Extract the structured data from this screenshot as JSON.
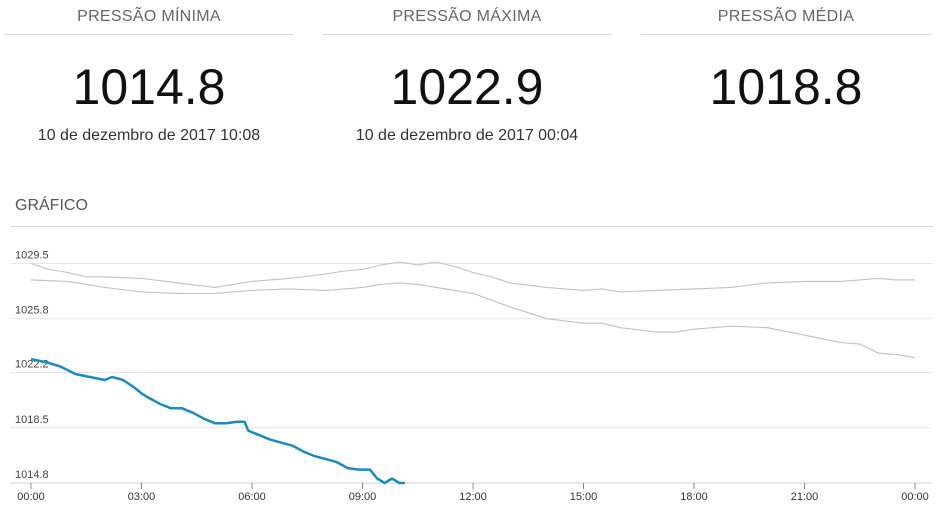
{
  "stats": [
    {
      "label": "PRESSÃO MÍNIMA",
      "value": "1014.8",
      "date": "10 de dezembro de 2017 10:08"
    },
    {
      "label": "PRESSÃO MÁXIMA",
      "value": "1022.9",
      "date": "10 de dezembro de 2017 00:04"
    },
    {
      "label": "PRESSÃO MÉDIA",
      "value": "1018.8",
      "date": ""
    }
  ],
  "section_title": "GRÁFICO",
  "colors": {
    "current": "#1a8ac4",
    "history": "#c9bfc1",
    "grid": "#e6e6e6"
  },
  "chart_data": {
    "type": "line",
    "x_unit": "hours",
    "xlim": [
      0,
      24
    ],
    "ylim": [
      1014.8,
      1032.7
    ],
    "x_ticks": [
      0,
      3,
      6,
      9,
      12,
      15,
      18,
      21,
      24
    ],
    "x_tick_labels": [
      "00:00",
      "03:00",
      "06:00",
      "09:00",
      "12:00",
      "15:00",
      "18:00",
      "21:00",
      "00:00"
    ],
    "y_ticks": [
      1014.8,
      1018.5,
      1022.2,
      1025.8,
      1029.5
    ],
    "y_tick_labels": [
      "1014.8",
      "1018.5",
      "1022.2",
      "1025.8",
      "1029.5"
    ],
    "grid": true,
    "series": [
      {
        "role": "history-upper",
        "x": [
          0,
          0.5,
          1,
          1.5,
          2,
          3,
          4,
          5,
          5.5,
          6,
          7,
          8,
          8.5,
          9,
          9.5,
          10,
          10.5,
          11,
          11.5,
          12,
          12.5,
          13,
          14,
          15,
          15.5,
          16,
          17,
          18,
          19,
          20,
          21,
          22,
          23,
          23.5,
          24
        ],
        "y": [
          1029.5,
          1029.1,
          1028.9,
          1028.6,
          1028.6,
          1028.5,
          1028.2,
          1027.9,
          1028.1,
          1028.3,
          1028.5,
          1028.8,
          1029.0,
          1029.1,
          1029.4,
          1029.6,
          1029.4,
          1029.6,
          1029.3,
          1028.9,
          1028.6,
          1028.2,
          1027.9,
          1027.7,
          1027.8,
          1027.6,
          1027.7,
          1027.8,
          1027.9,
          1028.2,
          1028.3,
          1028.3,
          1028.5,
          1028.4,
          1028.4
        ]
      },
      {
        "role": "history-lower",
        "x": [
          0,
          1,
          2,
          3,
          4,
          5,
          6,
          7,
          8,
          9,
          9.5,
          10,
          10.5,
          11,
          12,
          13,
          14,
          15,
          15.5,
          16,
          17,
          17.5,
          18,
          19,
          20,
          21,
          22,
          22.5,
          23,
          23.5,
          24
        ],
        "y": [
          1028.4,
          1028.3,
          1027.9,
          1027.6,
          1027.5,
          1027.5,
          1027.7,
          1027.8,
          1027.7,
          1027.9,
          1028.1,
          1028.2,
          1028.1,
          1027.9,
          1027.5,
          1026.6,
          1025.8,
          1025.5,
          1025.5,
          1025.2,
          1024.9,
          1024.9,
          1025.1,
          1025.3,
          1025.2,
          1024.7,
          1024.2,
          1024.1,
          1023.5,
          1023.4,
          1023.2
        ]
      },
      {
        "role": "current",
        "x": [
          0,
          0.4,
          0.8,
          1.2,
          1.6,
          2.0,
          2.2,
          2.5,
          2.8,
          3.0,
          3.2,
          3.5,
          3.8,
          4.1,
          4.4,
          4.7,
          5.0,
          5.3,
          5.6,
          5.8,
          5.9,
          6.2,
          6.5,
          6.8,
          7.1,
          7.4,
          7.7,
          8.0,
          8.3,
          8.6,
          8.9,
          9.2,
          9.4,
          9.6,
          9.8,
          10.0,
          10.15
        ],
        "y": [
          1023.1,
          1022.9,
          1022.6,
          1022.1,
          1021.9,
          1021.7,
          1021.9,
          1021.7,
          1021.2,
          1020.8,
          1020.5,
          1020.1,
          1019.8,
          1019.8,
          1019.5,
          1019.1,
          1018.8,
          1018.8,
          1018.9,
          1018.9,
          1018.3,
          1018.0,
          1017.7,
          1017.5,
          1017.3,
          1016.9,
          1016.6,
          1016.4,
          1016.2,
          1015.8,
          1015.7,
          1015.7,
          1015.1,
          1014.8,
          1015.1,
          1014.8,
          1014.8
        ]
      }
    ]
  }
}
